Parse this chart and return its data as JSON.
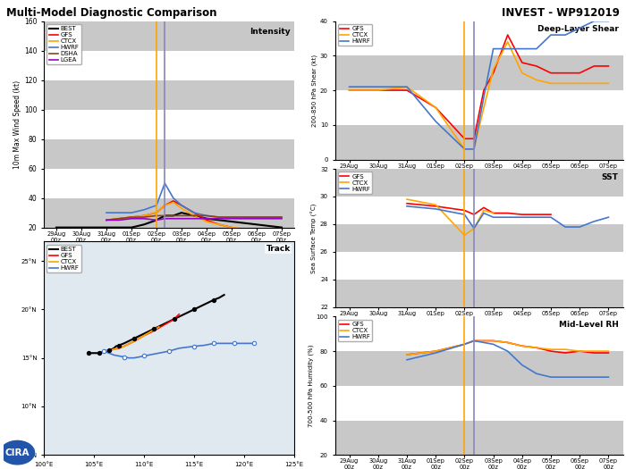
{
  "title_left": "Multi-Model Diagnostic Comparison",
  "title_right": "INVEST - WP912019",
  "x_labels": [
    "29Aug\n00z",
    "30Aug\n00z",
    "31Aug\n00z",
    "01Sep\n00z",
    "02Sep\n00z",
    "03Sep\n00z",
    "04Sep\n00z",
    "05Sep\n00z",
    "06Sep\n00z",
    "07Sep\n00z"
  ],
  "n_ticks": 10,
  "vline1_idx": 4.0,
  "vline2_idx": 4.33,
  "vline1_color": "#ffa500",
  "vline2_color": "#8888bb",
  "intensity": {
    "ylabel": "10m Max Wind Speed (kt)",
    "label": "Intensity",
    "ylim": [
      20,
      160
    ],
    "yticks": [
      20,
      40,
      60,
      80,
      100,
      120,
      140,
      160
    ],
    "best_x": [
      0.0,
      0.5,
      1.0,
      1.5,
      2.0,
      2.5,
      3.0,
      3.5,
      4.0,
      4.33,
      4.67,
      5.0,
      5.5,
      6.0,
      6.5,
      7.0,
      7.5,
      8.0,
      8.5,
      9.0
    ],
    "best_y": [
      20,
      20,
      20,
      20,
      20,
      20,
      20,
      22,
      25,
      28,
      28,
      30,
      28,
      26,
      25,
      24,
      23,
      22,
      21,
      20
    ],
    "gfs_x": [
      2.0,
      2.5,
      3.0,
      3.5,
      4.0,
      4.33,
      4.67,
      5.0,
      5.5,
      6.0,
      6.5,
      7.0,
      7.5,
      8.0,
      8.5,
      9.0
    ],
    "gfs_y": [
      25,
      26,
      27,
      28,
      30,
      35,
      38,
      35,
      30,
      25,
      22,
      20,
      18,
      16,
      14,
      12
    ],
    "ctcx_x": [
      2.0,
      2.5,
      3.0,
      3.5,
      4.0,
      4.33,
      4.67,
      5.0,
      5.5,
      6.0,
      6.5,
      7.0,
      7.5,
      8.0,
      8.5,
      9.0
    ],
    "ctcx_y": [
      25,
      26,
      27,
      28,
      30,
      35,
      37,
      33,
      28,
      24,
      22,
      20,
      19,
      18,
      17,
      16
    ],
    "hwrf_x": [
      2.0,
      2.5,
      3.0,
      3.5,
      4.0,
      4.33,
      4.67,
      5.0,
      5.5,
      6.0,
      6.5,
      7.0,
      7.5,
      8.0,
      8.5,
      9.0
    ],
    "hwrf_y": [
      30,
      30,
      30,
      32,
      35,
      50,
      40,
      35,
      30,
      28,
      27,
      27,
      27,
      27,
      27,
      27
    ],
    "dsha_x": [
      2.0,
      2.5,
      3.0,
      3.5,
      4.0,
      4.33,
      4.67,
      5.0,
      5.5,
      6.0,
      6.5,
      7.0,
      7.5,
      8.0,
      8.5,
      9.0
    ],
    "dsha_y": [
      25,
      26,
      27,
      27,
      28,
      28,
      28,
      28,
      28,
      28,
      27,
      27,
      27,
      27,
      27,
      27
    ],
    "lgea_x": [
      2.0,
      2.5,
      3.0,
      3.5,
      4.0,
      4.33,
      4.67,
      5.0,
      5.5,
      6.0,
      6.5,
      7.0,
      7.5,
      8.0,
      8.5,
      9.0
    ],
    "lgea_y": [
      25,
      25,
      26,
      26,
      25,
      26,
      26,
      26,
      26,
      26,
      26,
      26,
      26,
      26,
      26,
      26
    ]
  },
  "shear": {
    "ylabel": "200-850 hPa Shear (kt)",
    "label": "Deep-Layer Shear",
    "ylim": [
      0,
      40
    ],
    "yticks": [
      0,
      10,
      20,
      30,
      40
    ],
    "gfs_x": [
      0,
      1,
      2,
      3,
      4,
      4.33,
      4.67,
      5,
      5.5,
      6,
      6.5,
      7,
      7.5,
      8,
      8.5,
      9
    ],
    "gfs_y": [
      20,
      20,
      20,
      15,
      6,
      6,
      20,
      25,
      36,
      28,
      27,
      25,
      25,
      25,
      27,
      27
    ],
    "ctcx_x": [
      0,
      1,
      2,
      3,
      4,
      4.33,
      4.67,
      5,
      5.5,
      6,
      6.5,
      7,
      7.5,
      8,
      8.5,
      9
    ],
    "ctcx_y": [
      20,
      20,
      21,
      15,
      3,
      3,
      15,
      26,
      34,
      25,
      23,
      22,
      22,
      22,
      22,
      22
    ],
    "hwrf_x": [
      0,
      1,
      2,
      3,
      4,
      4.33,
      4.67,
      5,
      5.5,
      6,
      6.5,
      7,
      7.5,
      8,
      8.5,
      9
    ],
    "hwrf_y": [
      21,
      21,
      21,
      11,
      3,
      3,
      18,
      32,
      32,
      32,
      32,
      36,
      36,
      38,
      40,
      40
    ]
  },
  "sst": {
    "ylabel": "Sea Surface Temp (°C)",
    "label": "SST",
    "ylim": [
      22,
      32
    ],
    "yticks": [
      22,
      24,
      26,
      28,
      30,
      32
    ],
    "gfs_x": [
      2,
      3,
      4,
      4.33,
      4.67,
      5,
      5.5,
      6,
      6.5,
      7
    ],
    "gfs_y": [
      29.5,
      29.3,
      29.0,
      28.7,
      29.2,
      28.8,
      28.8,
      28.7,
      28.7,
      28.7
    ],
    "ctcx_x": [
      2,
      3,
      4,
      4.33,
      4.67,
      5
    ],
    "ctcx_y": [
      29.8,
      29.4,
      27.2,
      27.7,
      29.0,
      28.8
    ],
    "hwrf_x": [
      2,
      3,
      4,
      4.33,
      4.67,
      5,
      6,
      7,
      7.5,
      8,
      8.5,
      9
    ],
    "hwrf_y": [
      29.3,
      29.1,
      28.7,
      27.7,
      28.8,
      28.5,
      28.5,
      28.5,
      27.8,
      27.8,
      28.2,
      28.5
    ]
  },
  "rh": {
    "ylabel": "700-500 hPa Humidity (%)",
    "label": "Mid-Level RH",
    "ylim": [
      20,
      100
    ],
    "yticks": [
      20,
      40,
      60,
      80,
      100
    ],
    "gfs_x": [
      2,
      3,
      4,
      4.33,
      4.67,
      5,
      5.5,
      6,
      6.5,
      7,
      7.5,
      8,
      8.5,
      9
    ],
    "gfs_y": [
      78,
      80,
      84,
      86,
      86,
      86,
      85,
      83,
      82,
      80,
      79,
      80,
      79,
      79
    ],
    "ctcx_x": [
      2,
      3,
      4,
      4.33,
      4.67,
      5,
      5.5,
      6,
      6.5,
      7,
      7.5,
      8,
      8.5,
      9
    ],
    "ctcx_y": [
      78,
      80,
      84,
      86,
      86,
      86,
      85,
      83,
      82,
      81,
      81,
      80,
      80,
      80
    ],
    "hwrf_x": [
      2,
      3,
      4,
      4.33,
      4.67,
      5,
      5.5,
      6,
      6.5,
      7,
      7.5,
      8,
      8.5,
      9
    ],
    "hwrf_y": [
      75,
      79,
      84,
      86,
      85,
      84,
      80,
      72,
      67,
      65,
      65,
      65,
      65,
      65
    ]
  },
  "track": {
    "best_lon": [
      104.5,
      104.8,
      105.2,
      105.5,
      105.8,
      106.0,
      106.2,
      106.5,
      106.8,
      107.0,
      107.2,
      107.5,
      108.0,
      109.0,
      110.0,
      111.0,
      112.0,
      113.0,
      114.0,
      115.0,
      116.0,
      117.0,
      117.5,
      118.0
    ],
    "best_lat": [
      15.5,
      15.5,
      15.5,
      15.5,
      15.6,
      15.6,
      15.7,
      15.8,
      15.9,
      16.0,
      16.2,
      16.3,
      16.5,
      17.0,
      17.5,
      18.0,
      18.5,
      19.0,
      19.5,
      20.0,
      20.5,
      21.0,
      21.2,
      21.5
    ],
    "best_dot_lon": [
      104.5,
      105.5,
      106.5,
      107.5,
      109.0,
      111.0,
      113.0,
      115.0,
      117.0
    ],
    "best_dot_lat": [
      15.5,
      15.5,
      15.8,
      16.3,
      17.0,
      18.0,
      19.0,
      20.0,
      21.0
    ],
    "gfs_lon": [
      106.0,
      106.3,
      106.7,
      107.0,
      107.5,
      108.0,
      109.0,
      110.0,
      111.0,
      112.0,
      113.0,
      113.5
    ],
    "gfs_lat": [
      15.7,
      15.8,
      15.8,
      15.9,
      16.0,
      16.2,
      16.7,
      17.3,
      17.8,
      18.4,
      19.0,
      19.5
    ],
    "ctcx_lon": [
      106.0,
      106.3,
      106.7,
      107.0,
      107.3,
      107.7,
      108.0,
      109.0,
      110.0,
      110.8,
      111.5
    ],
    "ctcx_lat": [
      15.7,
      15.8,
      15.8,
      15.9,
      16.0,
      16.1,
      16.2,
      16.7,
      17.3,
      17.8,
      18.2
    ],
    "hwrf_lon": [
      106.0,
      106.5,
      107.0,
      107.5,
      108.0,
      108.5,
      109.0,
      110.0,
      111.5,
      112.5,
      113.5,
      115.0,
      116.0,
      117.0,
      118.0,
      119.0,
      120.0,
      121.0
    ],
    "hwrf_lat": [
      15.7,
      15.5,
      15.3,
      15.2,
      15.1,
      15.0,
      15.0,
      15.2,
      15.5,
      15.7,
      16.0,
      16.2,
      16.3,
      16.5,
      16.5,
      16.5,
      16.5,
      16.5
    ],
    "hwrf_dot_lon": [
      106.0,
      108.0,
      110.0,
      112.5,
      115.0,
      117.0,
      119.0,
      121.0
    ],
    "hwrf_dot_lat": [
      15.7,
      15.1,
      15.2,
      15.7,
      16.2,
      16.5,
      16.5,
      16.5
    ]
  },
  "colors": {
    "best": "#000000",
    "gfs": "#ff0000",
    "ctcx": "#ffa500",
    "hwrf": "#4477cc",
    "dsha": "#8B4513",
    "lgea": "#9900cc",
    "bg_gray": "#c8c8c8",
    "bg_white": "#ffffff",
    "land": "#c8c8c8",
    "ocean": "#e0e8f0",
    "border": "#aaaaaa"
  },
  "map_extent": [
    100,
    125,
    5,
    27
  ],
  "map_xticks": [
    100,
    105,
    110,
    115,
    120,
    125
  ],
  "map_yticks": [
    5,
    10,
    15,
    20,
    25
  ],
  "logo_text": "CIRA"
}
